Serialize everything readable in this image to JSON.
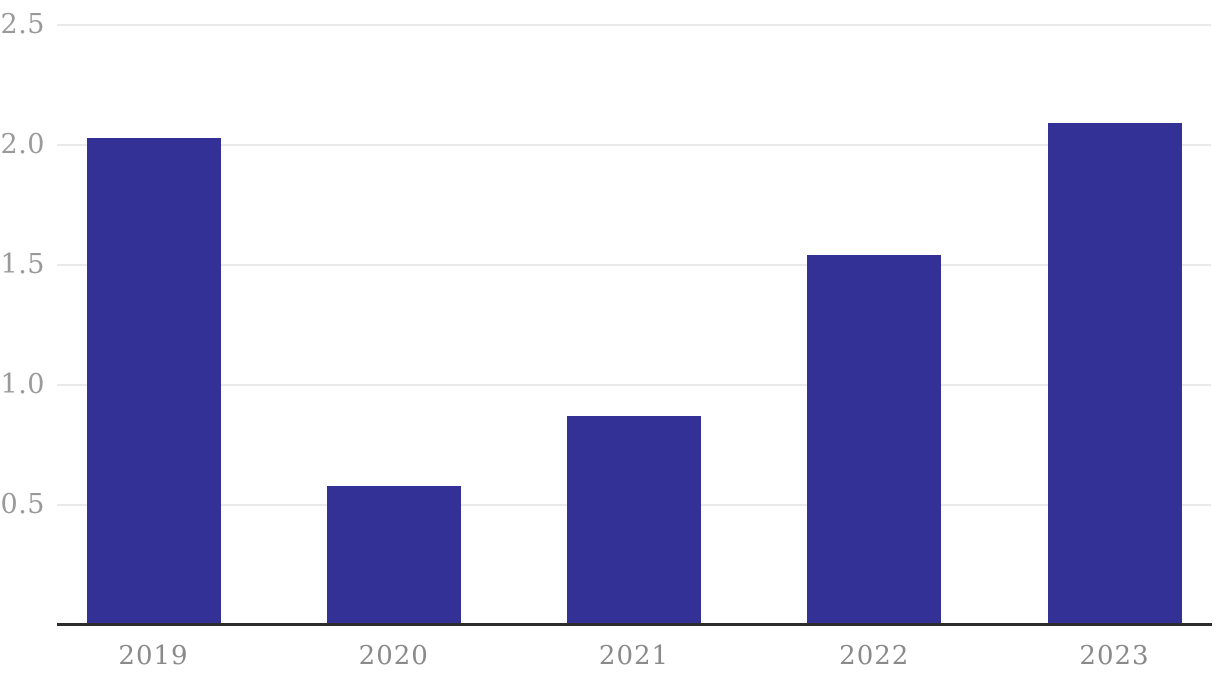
{
  "chart_data": {
    "type": "bar",
    "categories": [
      "2019",
      "2020",
      "2021",
      "2022",
      "2023"
    ],
    "values": [
      2.03,
      0.58,
      0.87,
      1.54,
      2.09
    ],
    "title": "",
    "xlabel": "",
    "ylabel": "",
    "ylim": [
      0,
      2.5
    ],
    "yticks": [
      0.5,
      1.0,
      1.5,
      2.0,
      2.5
    ],
    "ytick_labels": [
      "0.5",
      "1.0",
      "1.5",
      "2.0",
      "2.5"
    ],
    "grid": true,
    "legend": false,
    "colors": {
      "bar": "#343196",
      "gridline": "#e9e9e9",
      "axis_line": "#2d2d2d",
      "y_tick_label": "#9a9a9a",
      "x_tick_label": "#8a8a8a",
      "background": "#ffffff"
    }
  }
}
